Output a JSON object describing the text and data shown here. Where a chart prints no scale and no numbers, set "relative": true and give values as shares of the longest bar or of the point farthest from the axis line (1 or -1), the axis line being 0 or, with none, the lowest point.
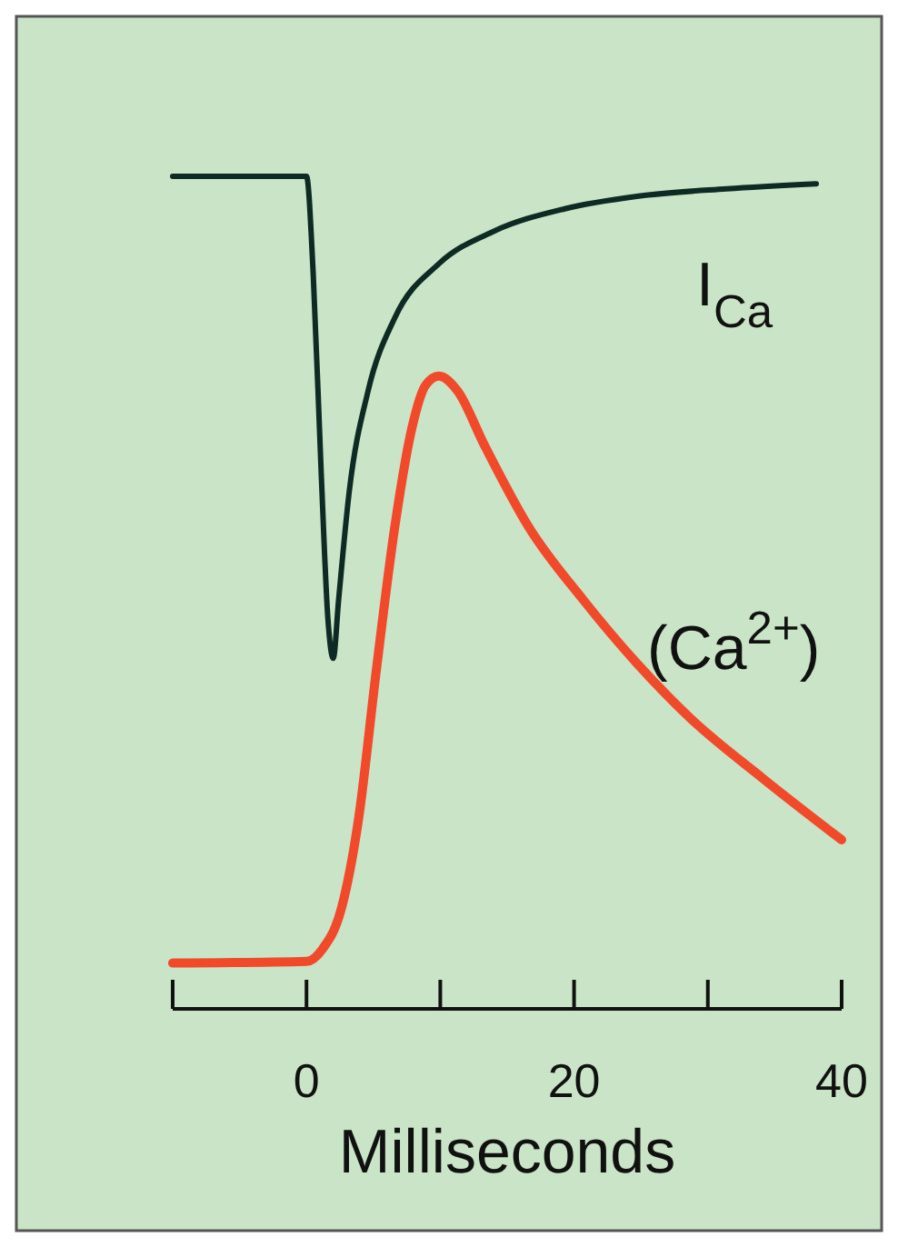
{
  "chart_data": {
    "type": "line",
    "relative": true,
    "xlabel": "Milliseconds",
    "xlim": [
      -10,
      40
    ],
    "xticks": [
      {
        "value": -10,
        "label": null
      },
      0,
      {
        "value": 10,
        "label": null
      },
      20,
      {
        "value": 30,
        "label": null
      },
      40
    ],
    "grid": false,
    "legend": false,
    "marker": "none",
    "line_style": "solid",
    "series": [
      {
        "name": "I$_{Ca}$",
        "color": "#0d2b24",
        "x": [
          -10,
          0,
          0.5,
          1.1,
          1.6,
          2.0,
          2.4,
          3.2,
          4.6,
          6.6,
          9.9,
          14,
          19.3,
          24.7,
          31.4,
          38.1
        ],
        "values": [
          1.0,
          1.0,
          0.884,
          0.644,
          0.469,
          0.421,
          0.491,
          0.622,
          0.742,
          0.83,
          0.895,
          0.934,
          0.961,
          0.976,
          0.985,
          0.991
        ]
      },
      {
        "name": "(Ca$^{2+}$)",
        "color": "#f04a2a",
        "x": [
          -10,
          0,
          1.2,
          2.6,
          3.9,
          5.2,
          6.6,
          7.9,
          8.9,
          9.9,
          11.3,
          13.3,
          16.6,
          20.7,
          24.7,
          28.7,
          34.1,
          40
        ],
        "values": [
          0.055,
          0.057,
          0.072,
          0.12,
          0.229,
          0.404,
          0.579,
          0.699,
          0.749,
          0.76,
          0.742,
          0.677,
          0.579,
          0.491,
          0.415,
          0.349,
          0.277,
          0.203
        ]
      }
    ]
  }
}
